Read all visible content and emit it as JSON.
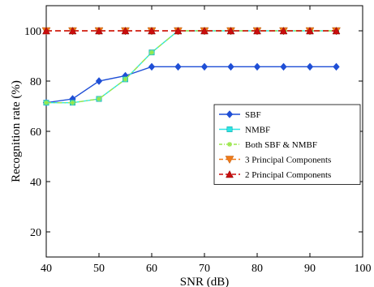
{
  "chart_data": {
    "type": "line",
    "xlabel": "SNR (dB)",
    "ylabel": "Recognition rate (%)",
    "xlim": [
      40,
      100
    ],
    "ylim": [
      10,
      110
    ],
    "xticks": [
      40,
      50,
      60,
      70,
      80,
      90,
      100
    ],
    "yticks": [
      20,
      40,
      60,
      80,
      100
    ],
    "grid": false,
    "legend_position": "right",
    "x": [
      40,
      45,
      50,
      55,
      60,
      65,
      70,
      75,
      80,
      85,
      90,
      95
    ],
    "series": [
      {
        "name": "SBF",
        "color": "#1f4fd6",
        "line_style": "solid",
        "marker": "diamond",
        "values": [
          71.4,
          72.9,
          80.0,
          82.1,
          85.7,
          85.7,
          85.7,
          85.7,
          85.7,
          85.7,
          85.7,
          85.7
        ]
      },
      {
        "name": "NMBF",
        "color": "#2ce6e6",
        "line_style": "solid",
        "marker": "square",
        "values": [
          71.4,
          71.4,
          72.9,
          80.7,
          91.4,
          100,
          100,
          100,
          100,
          100,
          100,
          100
        ]
      },
      {
        "name": "Both SBF & NMBF",
        "color": "#9ae64a",
        "line_style": "dashdot",
        "marker": "star",
        "values": [
          71.4,
          71.4,
          72.9,
          80.7,
          91.4,
          100,
          100,
          100,
          100,
          100,
          100,
          100
        ]
      },
      {
        "name": "3 Principal Components",
        "color": "#f07a18",
        "line_style": "dashed",
        "marker": "triangle-down",
        "values": [
          100,
          100,
          100,
          100,
          100,
          100,
          100,
          100,
          100,
          100,
          100,
          100
        ]
      },
      {
        "name": "2 Principal Components",
        "color": "#cc0d0d",
        "line_style": "dashed",
        "marker": "triangle-up",
        "values": [
          100,
          100,
          100,
          100,
          100,
          100,
          100,
          100,
          100,
          100,
          100,
          100
        ]
      }
    ]
  }
}
